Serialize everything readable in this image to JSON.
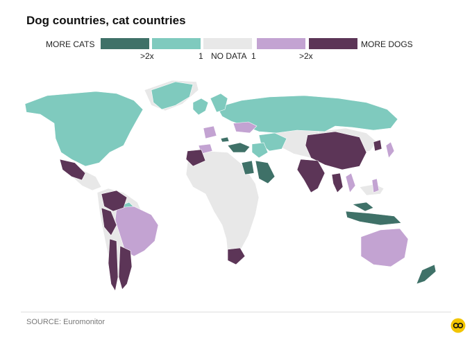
{
  "title": "Dog countries, cat countries",
  "legend": {
    "left_label": "MORE CATS",
    "right_label": "MORE DOGS",
    "no_data_label": "NO DATA",
    "ticks": [
      ">2x",
      "1",
      "1",
      ">2x"
    ],
    "colors": {
      "cats_strong": "#3f7168",
      "cats": "#7fcabe",
      "no_data": "#e8e8e8",
      "dogs": "#c3a3d2",
      "dogs_strong": "#5c3557"
    }
  },
  "map": {
    "categories": {
      "cats_strong": [
        "Turkey",
        "Egypt",
        "Saudi Arabia",
        "Malaysia",
        "Indonesia",
        "New Zealand",
        "Austria"
      ],
      "cats": [
        "Canada",
        "United States",
        "Greenland",
        "Russia",
        "Kazakhstan",
        "Mongolia",
        "Central Asia",
        "Iran",
        "Scandinavia",
        "United Kingdom",
        "Germany",
        "Guyana/Suriname",
        "Iraq",
        "Turkmenistan"
      ],
      "dogs": [
        "Brazil",
        "Australia",
        "Spain",
        "Ukraine",
        "Poland",
        "Japan",
        "Vietnam",
        "Philippines",
        "Uruguay",
        "France",
        "Ireland"
      ],
      "dogs_strong": [
        "Mexico",
        "Colombia",
        "Venezuela",
        "Peru",
        "Bolivia",
        "Chile",
        "Argentina",
        "China",
        "India",
        "Thailand",
        "South Africa",
        "Morocco",
        "Algeria",
        "South Korea",
        "Taiwan"
      ]
    }
  },
  "source": "SOURCE: Euromonitor",
  "logo_icon": "ft-logo-icon"
}
